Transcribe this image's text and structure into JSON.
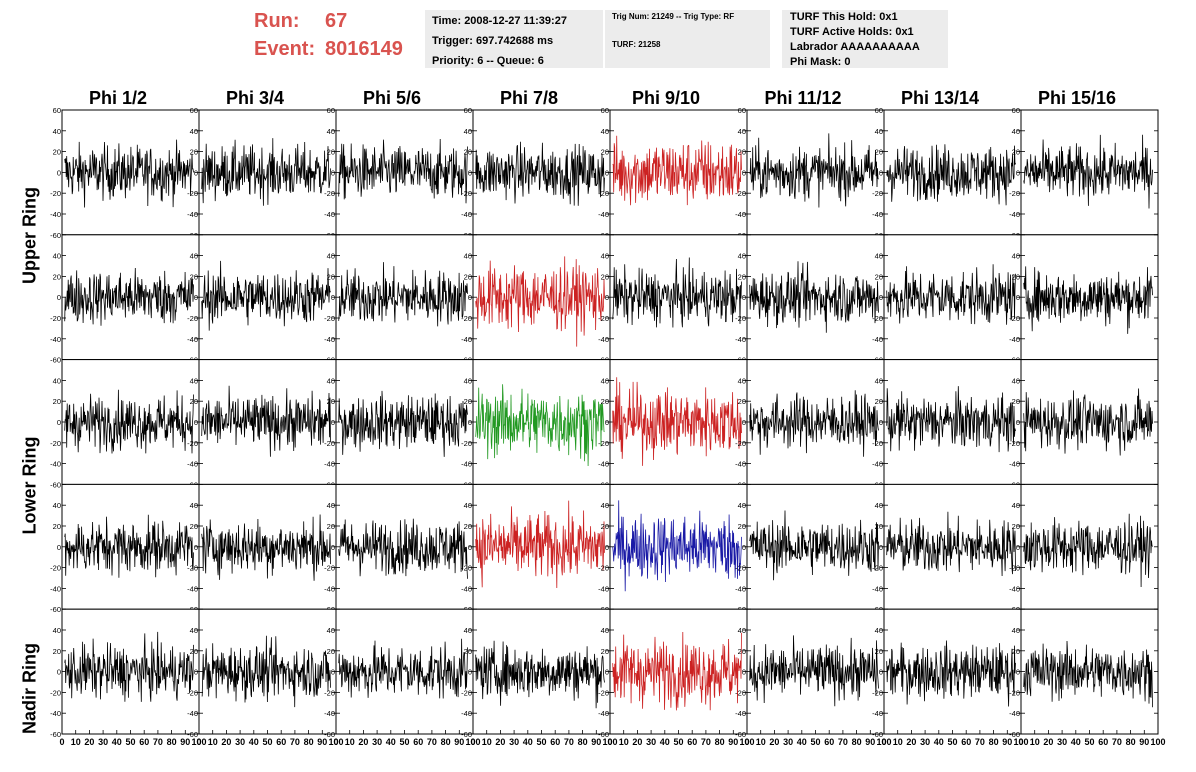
{
  "header": {
    "run_label": "Run:",
    "run_value": "67",
    "event_label": "Event:",
    "event_value": "8016149",
    "time_line": "Time: 2008-12-27 11:39:27",
    "trigger_line": "Trigger: 697.742688 ms",
    "priority_line": "Priority: 6 -- Queue: 6",
    "trig_line": "Trig Num: 21249 -- Trig Type: RF",
    "turf_line": "TURF: 21258",
    "turf_hold": "TURF This Hold: 0x1",
    "turf_active": "TURF Active Holds: 0x1",
    "labrador": "Labrador AAAAAAAAAA",
    "phi_mask": "Phi Mask: 0"
  },
  "columns": [
    "Phi 1/2",
    "Phi 3/4",
    "Phi 5/6",
    "Phi 7/8",
    "Phi 9/10",
    "Phi 11/12",
    "Phi 13/14",
    "Phi 15/16"
  ],
  "rows": [
    "Upper Ring",
    "Lower Ring",
    "Nadir Ring"
  ],
  "colors": {
    "normal": "#000000",
    "red": "#cc2222",
    "green": "#229922",
    "blue": "#1a1aa6"
  },
  "chart_data": {
    "type": "line",
    "x_ticks": [
      "0",
      "10",
      "20",
      "30",
      "40",
      "50",
      "60",
      "70",
      "80",
      "90",
      "100"
    ],
    "y_ticks": [
      "60",
      "40",
      "20",
      "0",
      "-20",
      "-40",
      "-60"
    ],
    "xlim": [
      0,
      100
    ],
    "ylim": [
      -60,
      60
    ],
    "panel_rows": 5,
    "panel_cols": 8,
    "trace_colors": [
      [
        "normal",
        "normal",
        "normal",
        "normal",
        "red",
        "normal",
        "normal",
        "normal"
      ],
      [
        "normal",
        "normal",
        "normal",
        "red",
        "normal",
        "normal",
        "normal",
        "normal"
      ],
      [
        "normal",
        "normal",
        "normal",
        "green",
        "red",
        "normal",
        "normal",
        "normal"
      ],
      [
        "normal",
        "normal",
        "normal",
        "red",
        "blue",
        "normal",
        "normal",
        "normal"
      ],
      [
        "normal",
        "normal",
        "normal",
        "normal",
        "red",
        "normal",
        "normal",
        "normal"
      ]
    ]
  }
}
